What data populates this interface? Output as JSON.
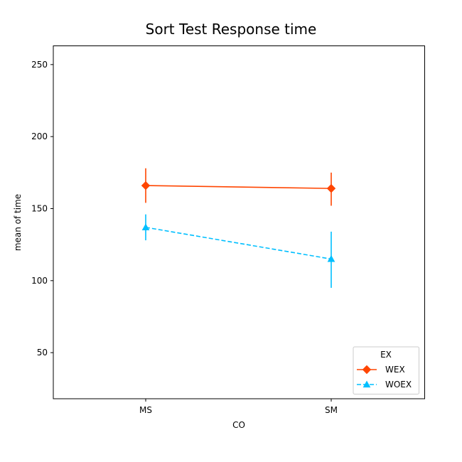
{
  "chart_data": {
    "type": "line",
    "title": "Sort Test Response time",
    "xlabel": "CO",
    "ylabel": "mean of time",
    "categories": [
      "MS",
      "SM"
    ],
    "ylim": [
      18,
      263
    ],
    "yticks": [
      50,
      100,
      150,
      200,
      250
    ],
    "grid": false,
    "legend": {
      "title": "EX",
      "placement": "bottom-right"
    },
    "series": [
      {
        "name": "WEX",
        "color": "#FF4500",
        "marker": "diamond",
        "linestyle": "solid",
        "values": [
          166,
          164
        ],
        "error_low": [
          154,
          152
        ],
        "error_high": [
          178,
          175
        ]
      },
      {
        "name": "WOEX",
        "color": "#00BFFF",
        "marker": "triangle",
        "linestyle": "dashed",
        "values": [
          137,
          115
        ],
        "error_low": [
          128,
          95
        ],
        "error_high": [
          146,
          134
        ]
      }
    ]
  }
}
